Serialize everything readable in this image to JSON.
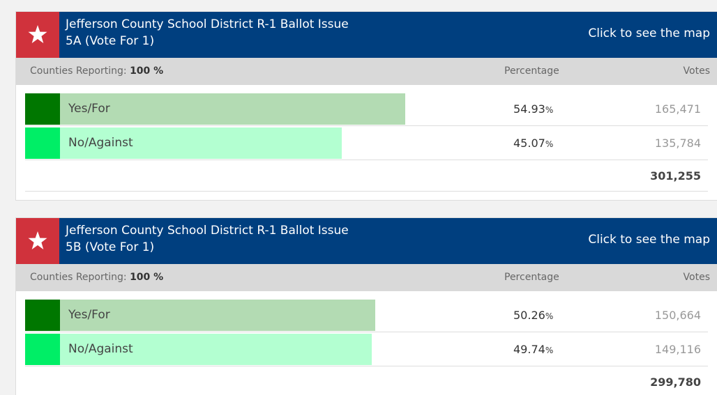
{
  "contests": [
    {
      "title_line1": "Jefferson County School District R-1 Ballot Issue",
      "title_line2": "5A (Vote For 1)",
      "map_link": "Click to see the map",
      "counties_reporting_label": "Counties Reporting:",
      "counties_reporting_value": "100 %",
      "percentage_header": "Percentage",
      "votes_header": "Votes",
      "percent_unit": "%",
      "rows": [
        {
          "name": "Yes/For",
          "percentage": 54.93,
          "votes": "165,471"
        },
        {
          "name": "No/Against",
          "percentage": 45.07,
          "votes": "135,784"
        }
      ],
      "total": "301,255"
    },
    {
      "title_line1": "Jefferson County School District R-1 Ballot Issue",
      "title_line2": "5B (Vote For 1)",
      "map_link": "Click to see the map",
      "counties_reporting_label": "Counties Reporting:",
      "counties_reporting_value": "100 %",
      "percentage_header": "Percentage",
      "votes_header": "Votes",
      "percent_unit": "%",
      "rows": [
        {
          "name": "Yes/For",
          "percentage": 50.26,
          "votes": "150,664"
        },
        {
          "name": "No/Against",
          "percentage": 49.74,
          "votes": "149,116"
        }
      ],
      "total": "299,780"
    }
  ]
}
